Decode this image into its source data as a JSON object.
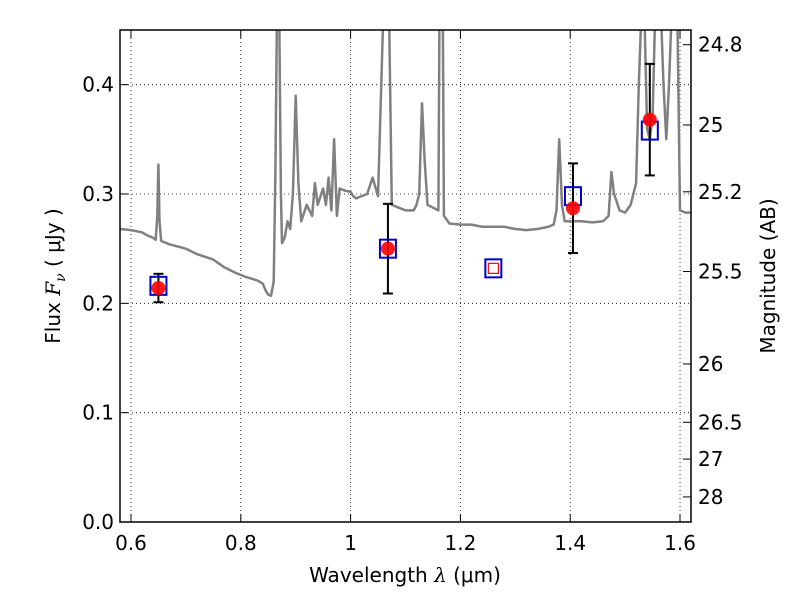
{
  "chart_data": {
    "type": "scatter",
    "xlabel": {
      "prefix": "Wavelength  ",
      "symbol": "λ",
      "unit": " (μm)"
    },
    "ylabel": {
      "prefix": "Flux  ",
      "symbol": "F",
      "subscript": "ν",
      "unit": "  ( μJy )"
    },
    "y2label": "Magnitude (AB)",
    "xlim": [
      0.58,
      1.62
    ],
    "ylim": [
      0.0,
      0.45
    ],
    "grid": true,
    "grid_style": "dotted",
    "x_ticks": [
      {
        "value": 0.6,
        "label": "0.6"
      },
      {
        "value": 0.8,
        "label": "0.8"
      },
      {
        "value": 1.0,
        "label": "1"
      },
      {
        "value": 1.2,
        "label": "1.2"
      },
      {
        "value": 1.4,
        "label": "1.4"
      },
      {
        "value": 1.6,
        "label": "1.6"
      }
    ],
    "y_ticks": [
      {
        "value": 0.0,
        "label": "0.0"
      },
      {
        "value": 0.1,
        "label": "0.1"
      },
      {
        "value": 0.2,
        "label": "0.2"
      },
      {
        "value": 0.3,
        "label": "0.3"
      },
      {
        "value": 0.4,
        "label": "0.4"
      }
    ],
    "y2_ticks": [
      {
        "value": 24.8,
        "label": "24.8"
      },
      {
        "value": 25.0,
        "label": "25"
      },
      {
        "value": 25.2,
        "label": "25.2"
      },
      {
        "value": 25.5,
        "label": "25.5"
      },
      {
        "value": 26.0,
        "label": "26"
      },
      {
        "value": 26.5,
        "label": "26.5"
      },
      {
        "value": 27.0,
        "label": "27"
      },
      {
        "value": 28.0,
        "label": "28"
      }
    ],
    "series": [
      {
        "kind": "model_spectrum",
        "color": "#808080",
        "points": [
          [
            0.58,
            0.268
          ],
          [
            0.6,
            0.267
          ],
          [
            0.62,
            0.265
          ],
          [
            0.63,
            0.262
          ],
          [
            0.64,
            0.26
          ],
          [
            0.645,
            0.258
          ],
          [
            0.648,
            0.28
          ],
          [
            0.65,
            0.327
          ],
          [
            0.652,
            0.275
          ],
          [
            0.655,
            0.257
          ],
          [
            0.67,
            0.254
          ],
          [
            0.7,
            0.25
          ],
          [
            0.72,
            0.245
          ],
          [
            0.75,
            0.24
          ],
          [
            0.77,
            0.233
          ],
          [
            0.79,
            0.228
          ],
          [
            0.81,
            0.224
          ],
          [
            0.83,
            0.221
          ],
          [
            0.84,
            0.218
          ],
          [
            0.845,
            0.212
          ],
          [
            0.85,
            0.208
          ],
          [
            0.855,
            0.207
          ],
          [
            0.86,
            0.22
          ],
          [
            0.863,
            0.32
          ],
          [
            0.866,
            0.47
          ],
          [
            0.87,
            0.47
          ],
          [
            0.873,
            0.3
          ],
          [
            0.875,
            0.255
          ],
          [
            0.88,
            0.26
          ],
          [
            0.885,
            0.275
          ],
          [
            0.89,
            0.268
          ],
          [
            0.895,
            0.3
          ],
          [
            0.9,
            0.39
          ],
          [
            0.905,
            0.31
          ],
          [
            0.91,
            0.275
          ],
          [
            0.92,
            0.29
          ],
          [
            0.93,
            0.28
          ],
          [
            0.935,
            0.31
          ],
          [
            0.94,
            0.29
          ],
          [
            0.95,
            0.305
          ],
          [
            0.955,
            0.29
          ],
          [
            0.96,
            0.315
          ],
          [
            0.965,
            0.285
          ],
          [
            0.97,
            0.35
          ],
          [
            0.975,
            0.28
          ],
          [
            0.98,
            0.305
          ],
          [
            0.99,
            0.303
          ],
          [
            1.0,
            0.302
          ],
          [
            1.005,
            0.298
          ],
          [
            1.01,
            0.296
          ],
          [
            1.03,
            0.3
          ],
          [
            1.04,
            0.315
          ],
          [
            1.05,
            0.298
          ],
          [
            1.06,
            0.47
          ],
          [
            1.07,
            0.47
          ],
          [
            1.075,
            0.29
          ],
          [
            1.09,
            0.287
          ],
          [
            1.1,
            0.285
          ],
          [
            1.115,
            0.285
          ],
          [
            1.12,
            0.29
          ],
          [
            1.125,
            0.3
          ],
          [
            1.13,
            0.383
          ],
          [
            1.135,
            0.33
          ],
          [
            1.14,
            0.29
          ],
          [
            1.16,
            0.285
          ],
          [
            1.162,
            0.47
          ],
          [
            1.168,
            0.47
          ],
          [
            1.17,
            0.28
          ],
          [
            1.18,
            0.273
          ],
          [
            1.2,
            0.272
          ],
          [
            1.22,
            0.272
          ],
          [
            1.24,
            0.27
          ],
          [
            1.28,
            0.27
          ],
          [
            1.3,
            0.268
          ],
          [
            1.32,
            0.267
          ],
          [
            1.34,
            0.268
          ],
          [
            1.36,
            0.27
          ],
          [
            1.37,
            0.272
          ],
          [
            1.375,
            0.285
          ],
          [
            1.38,
            0.35
          ],
          [
            1.385,
            0.29
          ],
          [
            1.39,
            0.275
          ],
          [
            1.42,
            0.275
          ],
          [
            1.44,
            0.274
          ],
          [
            1.46,
            0.275
          ],
          [
            1.47,
            0.28
          ],
          [
            1.475,
            0.32
          ],
          [
            1.48,
            0.3
          ],
          [
            1.49,
            0.285
          ],
          [
            1.5,
            0.283
          ],
          [
            1.51,
            0.29
          ],
          [
            1.52,
            0.31
          ],
          [
            1.525,
            0.4
          ],
          [
            1.53,
            0.47
          ],
          [
            1.535,
            0.47
          ],
          [
            1.54,
            0.36
          ],
          [
            1.545,
            0.35
          ],
          [
            1.55,
            0.37
          ],
          [
            1.555,
            0.47
          ],
          [
            1.565,
            0.47
          ],
          [
            1.57,
            0.4
          ],
          [
            1.575,
            0.35
          ],
          [
            1.58,
            0.4
          ],
          [
            1.585,
            0.47
          ],
          [
            1.595,
            0.47
          ],
          [
            1.6,
            0.285
          ],
          [
            1.61,
            0.283
          ],
          [
            1.62,
            0.283
          ]
        ]
      },
      {
        "kind": "model_photometry",
        "marker": "open-square",
        "color": "#0000cc",
        "points": [
          [
            0.65,
            0.216
          ],
          [
            1.068,
            0.25
          ],
          [
            1.405,
            0.298
          ],
          [
            1.545,
            0.358
          ]
        ]
      },
      {
        "kind": "observed_photometry",
        "marker": "filled-circle",
        "color": "#ff0000",
        "points": [
          {
            "x": 0.65,
            "y": 0.214,
            "err": 0.013
          },
          {
            "x": 1.068,
            "y": 0.25,
            "err": 0.041
          },
          {
            "x": 1.405,
            "y": 0.287,
            "err": 0.041
          },
          {
            "x": 1.545,
            "y": 0.368,
            "err": 0.051
          }
        ]
      },
      {
        "kind": "upper_or_undetected",
        "marker": "open-square-nested",
        "outer_color": "#0000cc",
        "inner_color": "#ff0000",
        "points": [
          [
            1.26,
            0.232
          ]
        ]
      }
    ]
  }
}
